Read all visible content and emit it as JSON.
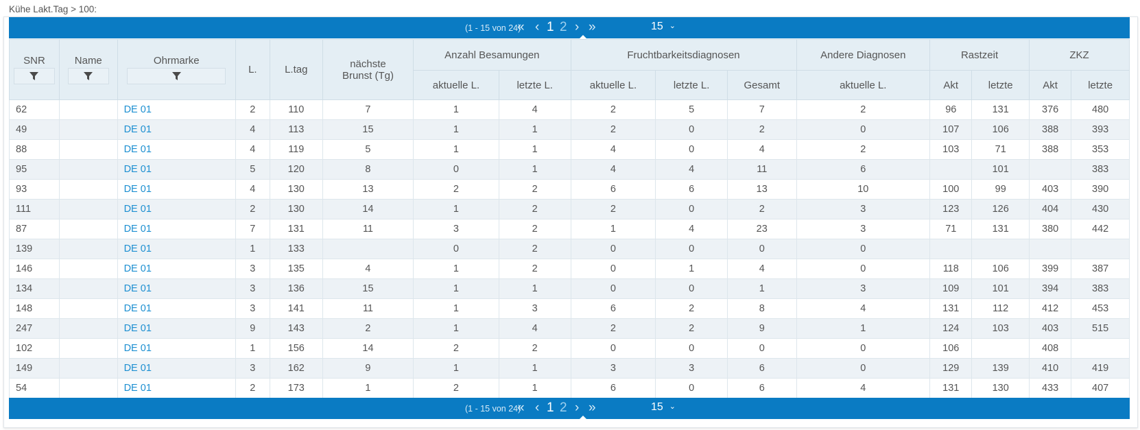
{
  "caption": "Kühe Lakt.Tag > 100:",
  "pager": {
    "info": "(1 - 15 von 24)",
    "first": "«",
    "prev": "‹",
    "next": "›",
    "last": "»",
    "pages": [
      "1",
      "2"
    ],
    "page_size": "15",
    "page_size_chevron": "⌄"
  },
  "header": {
    "snr": "SNR",
    "name": "Name",
    "ohrmarke": "Ohrmarke",
    "l": "L.",
    "ltag": "L.tag",
    "brunst": "nächste Brunst (Tg)",
    "besamungen": "Anzahl Besamungen",
    "frucht": "Fruchtbarkeitsdiagnosen",
    "andere": "Andere Diagnosen",
    "rastzeit": "Rastzeit",
    "zkz": "ZKZ",
    "akt_l": "aktuelle L.",
    "letzte_l": "letzte L.",
    "gesamt": "Gesamt",
    "akt": "Akt",
    "letzte": "letzte"
  },
  "rows": [
    [
      "62",
      "",
      "DE 01",
      "2",
      "110",
      "7",
      "1",
      "4",
      "2",
      "5",
      "7",
      "2",
      "96",
      "131",
      "376",
      "480"
    ],
    [
      "49",
      "",
      "DE 01",
      "4",
      "113",
      "15",
      "1",
      "1",
      "2",
      "0",
      "2",
      "0",
      "107",
      "106",
      "388",
      "393"
    ],
    [
      "88",
      "",
      "DE 01",
      "4",
      "119",
      "5",
      "1",
      "1",
      "4",
      "0",
      "4",
      "2",
      "103",
      "71",
      "388",
      "353"
    ],
    [
      "95",
      "",
      "DE 01",
      "5",
      "120",
      "8",
      "0",
      "1",
      "4",
      "4",
      "11",
      "6",
      "",
      "101",
      "",
      "383"
    ],
    [
      "93",
      "",
      "DE 01",
      "4",
      "130",
      "13",
      "2",
      "2",
      "6",
      "6",
      "13",
      "10",
      "100",
      "99",
      "403",
      "390"
    ],
    [
      "111",
      "",
      "DE 01",
      "2",
      "130",
      "14",
      "1",
      "2",
      "2",
      "0",
      "2",
      "3",
      "123",
      "126",
      "404",
      "430"
    ],
    [
      "87",
      "",
      "DE 01",
      "7",
      "131",
      "11",
      "3",
      "2",
      "1",
      "4",
      "23",
      "3",
      "71",
      "131",
      "380",
      "442"
    ],
    [
      "139",
      "",
      "DE 01",
      "1",
      "133",
      "",
      "0",
      "2",
      "0",
      "0",
      "0",
      "0",
      "",
      "",
      "",
      ""
    ],
    [
      "146",
      "",
      "DE 01",
      "3",
      "135",
      "4",
      "1",
      "2",
      "0",
      "1",
      "4",
      "0",
      "118",
      "106",
      "399",
      "387"
    ],
    [
      "134",
      "",
      "DE 01",
      "3",
      "136",
      "15",
      "1",
      "1",
      "0",
      "0",
      "1",
      "3",
      "109",
      "101",
      "394",
      "383"
    ],
    [
      "148",
      "",
      "DE 01",
      "3",
      "141",
      "11",
      "1",
      "3",
      "6",
      "2",
      "8",
      "4",
      "131",
      "112",
      "412",
      "453"
    ],
    [
      "247",
      "",
      "DE 01",
      "9",
      "143",
      "2",
      "1",
      "4",
      "2",
      "2",
      "9",
      "1",
      "124",
      "103",
      "403",
      "515"
    ],
    [
      "102",
      "",
      "DE 01",
      "1",
      "156",
      "14",
      "2",
      "2",
      "0",
      "0",
      "0",
      "0",
      "106",
      "",
      "408",
      ""
    ],
    [
      "149",
      "",
      "DE 01",
      "3",
      "162",
      "9",
      "1",
      "1",
      "3",
      "3",
      "6",
      "0",
      "129",
      "139",
      "410",
      "419"
    ],
    [
      "54",
      "",
      "DE 01",
      "2",
      "173",
      "1",
      "2",
      "1",
      "6",
      "0",
      "6",
      "4",
      "131",
      "130",
      "433",
      "407"
    ]
  ],
  "icons": {
    "filter": "filter-icon"
  },
  "colors": {
    "pager_bg": "#0a7bc3",
    "header_bg": "#e4eef4",
    "link": "#1c8fd1"
  }
}
